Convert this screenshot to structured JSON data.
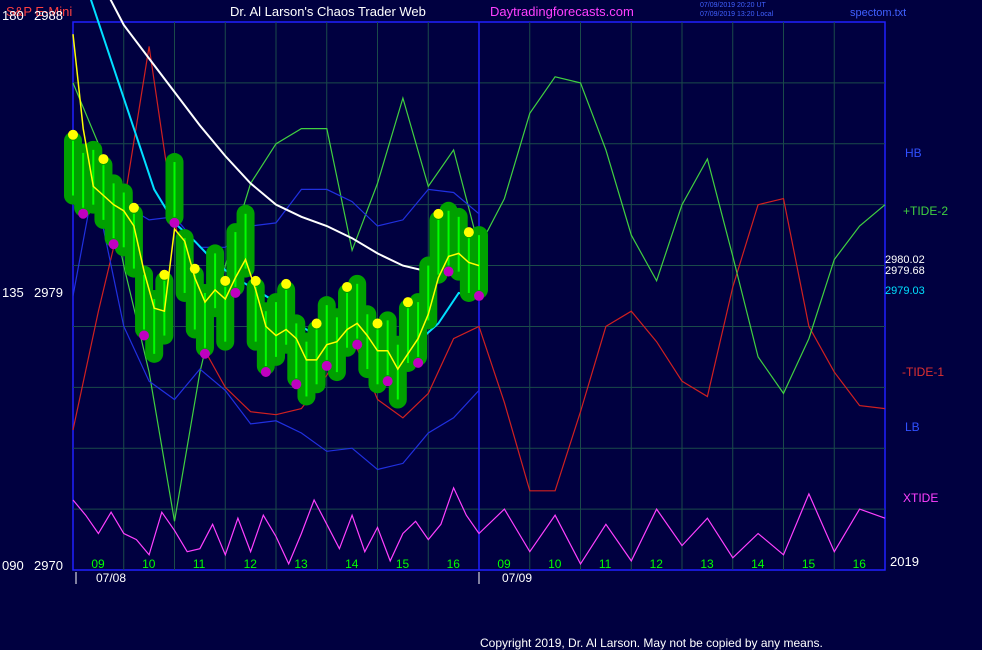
{
  "header": {
    "instrument": "S&P E-Mini",
    "site_title": "Dr. Al Larson's Chaos Trader Web",
    "site_url": "Daytradingforecasts.com",
    "time_utc": "07/09/2019 20:20 UT",
    "time_local": "07/09/2019 13:20 Local",
    "file": "spectom.txt"
  },
  "copyright": "Copyright 2019, Dr. Al Larson. May not be copied by any means.",
  "colors": {
    "background": "#000040",
    "plot_border": "#2020ff",
    "grid": "#1a4a4a",
    "price_bar": "#00ff00",
    "green_halo": "#00a000",
    "high_dot": "#ffff00",
    "low_dot": "#c000c0",
    "fast_ma": "#ffff00",
    "cyan_ma": "#00e0ff",
    "white_ma": "#ffffff",
    "tide2": "#40d040",
    "tide1": "#d02020",
    "xtide": "#ff40ff",
    "bands": "#2030e0"
  },
  "chart_data": {
    "type": "line",
    "title": "S&P E-Mini",
    "ylim": [
      2970,
      2988
    ],
    "y_ticks": [
      {
        "cycle": "180",
        "price": "2988",
        "value": 2988
      },
      {
        "cycle": "135",
        "price": "2979",
        "value": 2979
      },
      {
        "cycle": "090",
        "price": "2970",
        "value": 2970
      }
    ],
    "x_hours_day1": [
      "09",
      "10",
      "11",
      "12",
      "13",
      "14",
      "15",
      "16"
    ],
    "x_hours_day2": [
      "09",
      "10",
      "11",
      "12",
      "13",
      "14",
      "15",
      "16"
    ],
    "x_dates": [
      "07/08",
      "07/09"
    ],
    "year_label": "2019",
    "legend": [
      "HB",
      "+TIDE-2",
      "-TIDE-1",
      "LB",
      "XTIDE"
    ],
    "last_values": [
      "2980.02",
      "2979.68",
      "2979.03"
    ],
    "x_range": [
      0,
      16
    ],
    "series": [
      {
        "name": "price_close",
        "x": [
          0,
          0.2,
          0.4,
          0.6,
          0.8,
          1.0,
          1.2,
          1.4,
          1.6,
          1.8,
          2.0,
          2.2,
          2.4,
          2.6,
          2.8,
          3.0,
          3.2,
          3.4,
          3.6,
          3.8,
          4.0,
          4.2,
          4.4,
          4.6,
          4.8,
          5.0,
          5.2,
          5.4,
          5.6,
          5.8,
          6.0,
          6.2,
          6.4,
          6.6,
          6.8,
          7.0,
          7.2,
          7.4,
          7.6,
          7.8,
          8.0
        ],
        "values": [
          2983.2,
          2982.8,
          2982.9,
          2982.4,
          2981.8,
          2981.5,
          2980.8,
          2978.8,
          2978.0,
          2978.6,
          2982.5,
          2980.0,
          2978.8,
          2978.2,
          2979.5,
          2978.4,
          2980.2,
          2980.8,
          2978.4,
          2977.6,
          2977.9,
          2978.3,
          2977.2,
          2976.6,
          2977.0,
          2977.8,
          2977.4,
          2978.2,
          2978.5,
          2977.5,
          2977.0,
          2977.3,
          2976.5,
          2977.7,
          2977.9,
          2979.1,
          2980.6,
          2980.9,
          2980.7,
          2980.0,
          2980.1
        ]
      },
      {
        "name": "fast_ma",
        "x": [
          0,
          0.2,
          0.4,
          0.6,
          0.8,
          1.0,
          1.2,
          1.4,
          1.6,
          1.8,
          2.0,
          2.2,
          2.4,
          2.6,
          2.8,
          3.0,
          3.2,
          3.4,
          3.6,
          3.8,
          4.0,
          4.2,
          4.4,
          4.6,
          4.8,
          5.0,
          5.2,
          5.4,
          5.6,
          5.8,
          6.0,
          6.2,
          6.4,
          6.6,
          6.8,
          7.0,
          7.2,
          7.4,
          7.6,
          7.8,
          8.0
        ],
        "values": [
          2987.6,
          2984.5,
          2982.6,
          2982.3,
          2982.0,
          2981.8,
          2981.3,
          2979.8,
          2978.6,
          2978.5,
          2981.2,
          2980.8,
          2979.6,
          2978.8,
          2979.2,
          2978.9,
          2979.6,
          2980.2,
          2979.2,
          2978.0,
          2977.7,
          2977.9,
          2977.6,
          2976.9,
          2976.9,
          2977.4,
          2977.5,
          2977.9,
          2978.1,
          2977.7,
          2977.2,
          2977.2,
          2976.6,
          2977.1,
          2977.6,
          2978.4,
          2979.6,
          2980.3,
          2980.4,
          2980.1,
          2980.0
        ]
      },
      {
        "name": "cyan_ma",
        "x": [
          0,
          0.4,
          0.8,
          1.2,
          1.6,
          2.0,
          2.4,
          2.8,
          3.2,
          3.6,
          4.0,
          4.4,
          4.8,
          5.2,
          5.6,
          6.0,
          6.4,
          6.8,
          7.2,
          7.6,
          8.0
        ],
        "values": [
          2990.5,
          2988.5,
          2986.5,
          2984.5,
          2982.5,
          2981.4,
          2980.8,
          2980.1,
          2979.6,
          2979.2,
          2978.8,
          2978.1,
          2977.7,
          2977.7,
          2977.8,
          2977.6,
          2977.4,
          2977.5,
          2978.1,
          2979.1,
          2979.0
        ]
      },
      {
        "name": "white_ma",
        "x": [
          0,
          0.5,
          1.0,
          1.5,
          2.0,
          2.5,
          3.0,
          3.5,
          4.0,
          4.5,
          5.0,
          5.5,
          6.0,
          6.5,
          7.0,
          7.5,
          8.0
        ],
        "values": [
          2991.5,
          2989.5,
          2987.9,
          2986.8,
          2985.7,
          2984.6,
          2983.6,
          2982.7,
          2982.0,
          2981.6,
          2981.3,
          2980.9,
          2980.4,
          2980.0,
          2979.8,
          2979.8,
          2979.7
        ]
      },
      {
        "name": "HB",
        "x": [
          0,
          0.5,
          1.0,
          1.5,
          2.0,
          2.5,
          3.0,
          3.5,
          4.0,
          4.5,
          5.0,
          5.5,
          6.0,
          6.5,
          7.0,
          7.5,
          8.0
        ],
        "values": [
          2979.0,
          2983.5,
          2982.0,
          2981.5,
          2981.6,
          2980.6,
          2980.6,
          2981.3,
          2981.4,
          2982.5,
          2982.5,
          2982.1,
          2981.3,
          2981.5,
          2982.5,
          2982.4,
          2981.7
        ]
      },
      {
        "name": "LB",
        "x": [
          0,
          0.5,
          1.0,
          1.5,
          2.0,
          2.5,
          3.0,
          3.5,
          4.0,
          4.5,
          5.0,
          5.5,
          6.0,
          6.5,
          7.0,
          7.5,
          8.0
        ],
        "values": [
          2984.0,
          2982.0,
          2978.0,
          2976.2,
          2975.6,
          2976.6,
          2975.9,
          2974.8,
          2974.9,
          2974.5,
          2973.9,
          2974.0,
          2973.3,
          2973.5,
          2974.5,
          2975.0,
          2975.9
        ]
      },
      {
        "name": "+TIDE-2",
        "x": [
          0,
          0.5,
          1.0,
          1.5,
          2.0,
          2.5,
          3.0,
          3.5,
          4.0,
          4.5,
          5.0,
          5.5,
          6.0,
          6.5,
          7.0,
          7.5,
          8.0,
          8.5,
          9.0,
          9.5,
          10.0,
          10.5,
          11.0,
          11.5,
          12.0,
          12.5,
          13.0,
          13.5,
          14.0,
          14.5,
          15.0,
          15.5,
          16.0
        ],
        "values": [
          2986.0,
          2984.0,
          2980.0,
          2976.5,
          2971.6,
          2976.5,
          2980.0,
          2982.7,
          2984.0,
          2984.5,
          2984.5,
          2980.5,
          2982.7,
          2985.5,
          2982.6,
          2983.8,
          2980.6,
          2982.2,
          2985.0,
          2986.2,
          2986.0,
          2983.8,
          2981.0,
          2979.5,
          2982.0,
          2983.5,
          2980.3,
          2977.0,
          2975.8,
          2977.6,
          2980.2,
          2981.3,
          2982.0
        ]
      },
      {
        "name": "-TIDE-1",
        "x": [
          0,
          0.5,
          1.0,
          1.5,
          2.0,
          2.5,
          3.0,
          3.5,
          4.0,
          4.5,
          5.0,
          5.5,
          6.0,
          6.5,
          7.0,
          7.5,
          8.0,
          8.5,
          9.0,
          9.5,
          10.0,
          10.5,
          11.0,
          11.5,
          12.0,
          12.5,
          13.0,
          13.5,
          14.0,
          14.5,
          15.0,
          15.5,
          16.0
        ],
        "values": [
          2974.6,
          2978.5,
          2982.0,
          2987.2,
          2981.5,
          2977.5,
          2976.0,
          2975.2,
          2975.1,
          2975.3,
          2976.4,
          2977.7,
          2975.6,
          2975.0,
          2975.8,
          2977.6,
          2978.0,
          2975.5,
          2972.6,
          2972.6,
          2975.2,
          2978.0,
          2978.5,
          2977.5,
          2976.2,
          2975.7,
          2979.3,
          2982.0,
          2982.2,
          2978.0,
          2976.5,
          2975.4,
          2975.3
        ]
      },
      {
        "name": "XTIDE",
        "x": [
          0,
          0.25,
          0.5,
          0.75,
          1.0,
          1.25,
          1.5,
          1.75,
          2.0,
          2.25,
          2.5,
          2.75,
          3.0,
          3.25,
          3.5,
          3.75,
          4.0,
          4.25,
          4.5,
          4.75,
          5.0,
          5.25,
          5.5,
          5.75,
          6.0,
          6.25,
          6.5,
          6.75,
          7.0,
          7.25,
          7.5,
          7.75,
          8.0,
          8.5,
          9.0,
          9.5,
          10.0,
          10.5,
          11.0,
          11.5,
          12.0,
          12.5,
          13.0,
          13.5,
          14.0,
          14.5,
          15.0,
          15.5,
          16.0
        ],
        "values": [
          2972.3,
          2971.8,
          2971.2,
          2971.9,
          2971.2,
          2971.0,
          2970.5,
          2971.9,
          2971.3,
          2970.6,
          2970.7,
          2971.5,
          2970.5,
          2971.7,
          2970.6,
          2971.8,
          2971.1,
          2970.2,
          2971.2,
          2972.3,
          2971.5,
          2970.7,
          2971.8,
          2970.6,
          2971.4,
          2970.3,
          2971.2,
          2971.6,
          2971.0,
          2971.5,
          2972.7,
          2971.8,
          2971.2,
          2972.0,
          2970.6,
          2971.8,
          2970.2,
          2971.5,
          2970.3,
          2972.0,
          2970.8,
          2971.7,
          2970.4,
          2971.2,
          2970.5,
          2972.5,
          2970.6,
          2972.0,
          2971.7
        ]
      }
    ]
  }
}
